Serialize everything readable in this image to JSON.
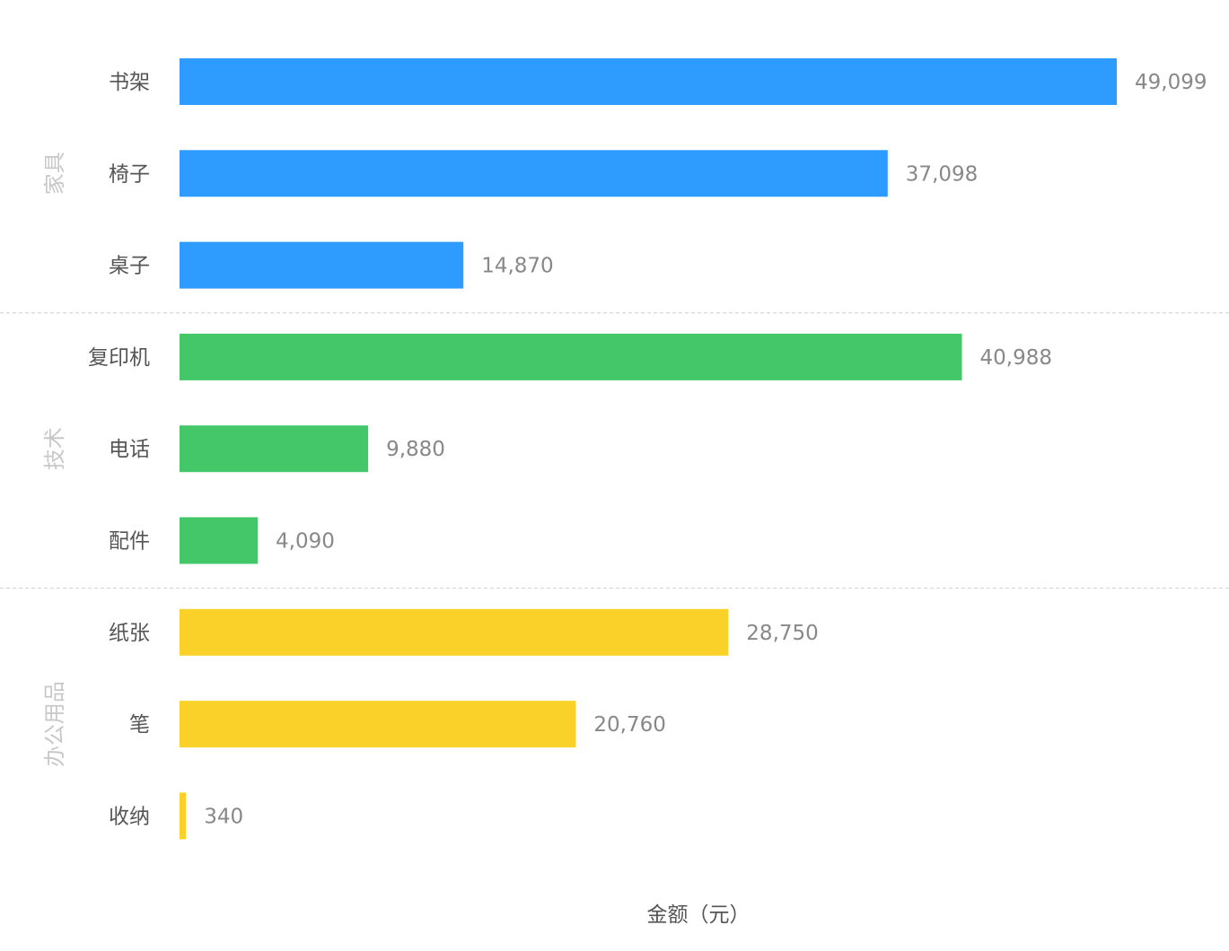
{
  "chart_data": {
    "type": "bar",
    "orientation": "horizontal",
    "xlabel": "金额（元）",
    "ylabel": "",
    "grid": false,
    "groups": [
      {
        "name": "家具",
        "color": "#2d9bff",
        "categories": [
          "书架",
          "椅子",
          "桌子"
        ],
        "values": [
          49099,
          37098,
          14870
        ],
        "value_labels": [
          "49,099",
          "37,098",
          "14,870"
        ]
      },
      {
        "name": "技术",
        "color": "#43c768",
        "categories": [
          "复印机",
          "电话",
          "配件"
        ],
        "values": [
          40988,
          9880,
          4090
        ],
        "value_labels": [
          "40,988",
          "9,880",
          "4,090"
        ]
      },
      {
        "name": "办公用品",
        "color": "#f9d128",
        "categories": [
          "纸张",
          "笔",
          "收纳"
        ],
        "values": [
          28750,
          20760,
          340
        ],
        "value_labels": [
          "28,750",
          "20,760",
          "340"
        ]
      }
    ]
  }
}
